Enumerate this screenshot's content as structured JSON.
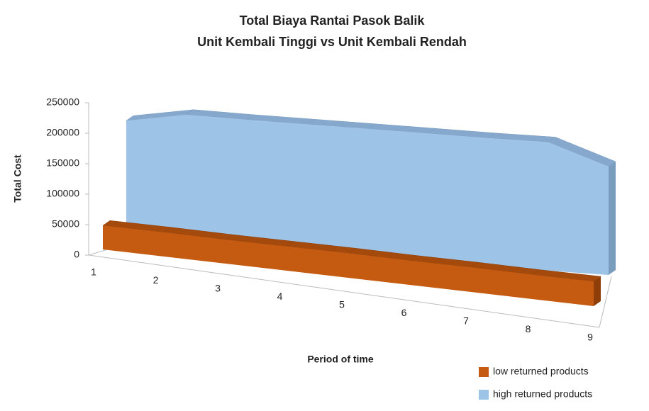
{
  "chart_data": {
    "type": "area3d",
    "title": "Total Biaya Rantai Pasok Balik",
    "subtitle": "Unit Kembali Tinggi vs Unit Kembali Rendah",
    "y_label": "Total Cost",
    "x_label": "Period of time",
    "categories": [
      "1",
      "2",
      "3",
      "4",
      "5",
      "6",
      "7",
      "8",
      "9"
    ],
    "series": [
      {
        "name": "low returned products",
        "color": "#c55a11",
        "values": [
          45000,
          45000,
          44000,
          44000,
          44000,
          43000,
          43000,
          42000,
          42000
        ]
      },
      {
        "name": "high returned products",
        "color": "#9dc3e6",
        "values": [
          207000,
          222000,
          218000,
          215000,
          212000,
          209000,
          206000,
          204000,
          170000
        ]
      }
    ],
    "ylim": [
      0,
      250000
    ],
    "yticks": [
      0,
      50000,
      100000,
      150000,
      200000,
      250000
    ],
    "legend": "bottom-right"
  }
}
